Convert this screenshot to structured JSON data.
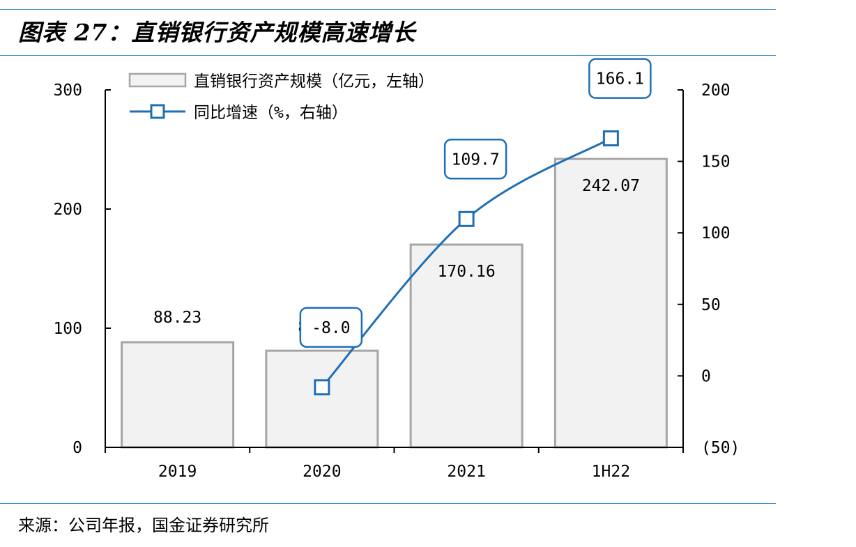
{
  "figure": {
    "title": "图表 27：直销银行资产规模高速增长",
    "source": "来源：公司年报，国金证券研究所"
  },
  "colors": {
    "rule": "#2e8fc4",
    "bar_fill": "#f2f2f2",
    "bar_stroke": "#a6a6a6",
    "line": "#1f6fb5",
    "axis": "#000000"
  },
  "chart_data": {
    "type": "bar+line",
    "title": "",
    "categories": [
      "2019",
      "2020",
      "2021",
      "1H22"
    ],
    "series": [
      {
        "name": "直销银行资产规模（亿元，左轴）",
        "type": "bar",
        "axis": "left",
        "values": [
          88.23,
          81.16,
          170.16,
          242.07
        ],
        "labels": [
          "88.23",
          "81.16",
          "170.16",
          "242.07"
        ]
      },
      {
        "name": "同比增速（%，右轴）",
        "type": "line",
        "axis": "right",
        "values": [
          null,
          -8.0,
          109.7,
          166.1
        ],
        "labels": [
          "",
          "-8.0",
          "109.7",
          "166.1"
        ]
      }
    ],
    "y_left": {
      "range": [
        0,
        300
      ],
      "ticks": [
        "0",
        "100",
        "200",
        "300"
      ]
    },
    "y_right": {
      "range": [
        -50,
        200
      ],
      "ticks": [
        "(50)",
        "0",
        "50",
        "100",
        "150",
        "200"
      ]
    },
    "grid": false,
    "legend_position": "top-left"
  }
}
